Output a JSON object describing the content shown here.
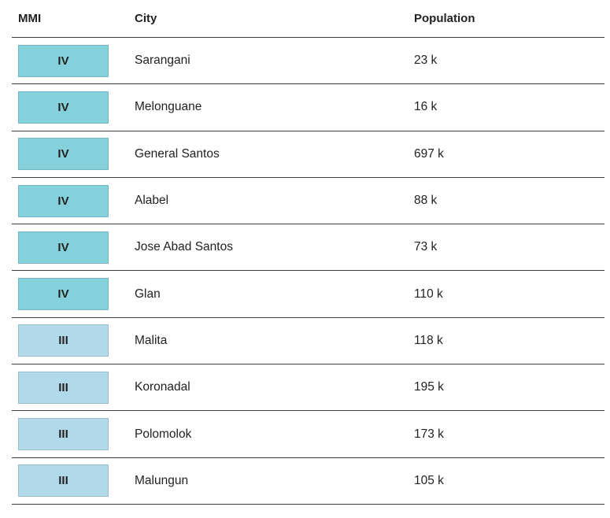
{
  "table": {
    "headers": [
      "MMI",
      "City",
      "Population"
    ],
    "badge_colors": {
      "IV": "#84d1dc",
      "III": "#b1d9ea"
    },
    "rows": [
      [
        "IV",
        "Sarangani",
        "23 k"
      ],
      [
        "IV",
        "Melonguane",
        "16 k"
      ],
      [
        "IV",
        "General Santos",
        "697 k"
      ],
      [
        "IV",
        "Alabel",
        "88 k"
      ],
      [
        "IV",
        "Jose Abad Santos",
        "73 k"
      ],
      [
        "IV",
        "Glan",
        "110 k"
      ],
      [
        "III",
        "Malita",
        "118 k"
      ],
      [
        "III",
        "Koronadal",
        "195 k"
      ],
      [
        "III",
        "Polomolok",
        "173 k"
      ],
      [
        "III",
        "Malungun",
        "105 k"
      ]
    ]
  }
}
